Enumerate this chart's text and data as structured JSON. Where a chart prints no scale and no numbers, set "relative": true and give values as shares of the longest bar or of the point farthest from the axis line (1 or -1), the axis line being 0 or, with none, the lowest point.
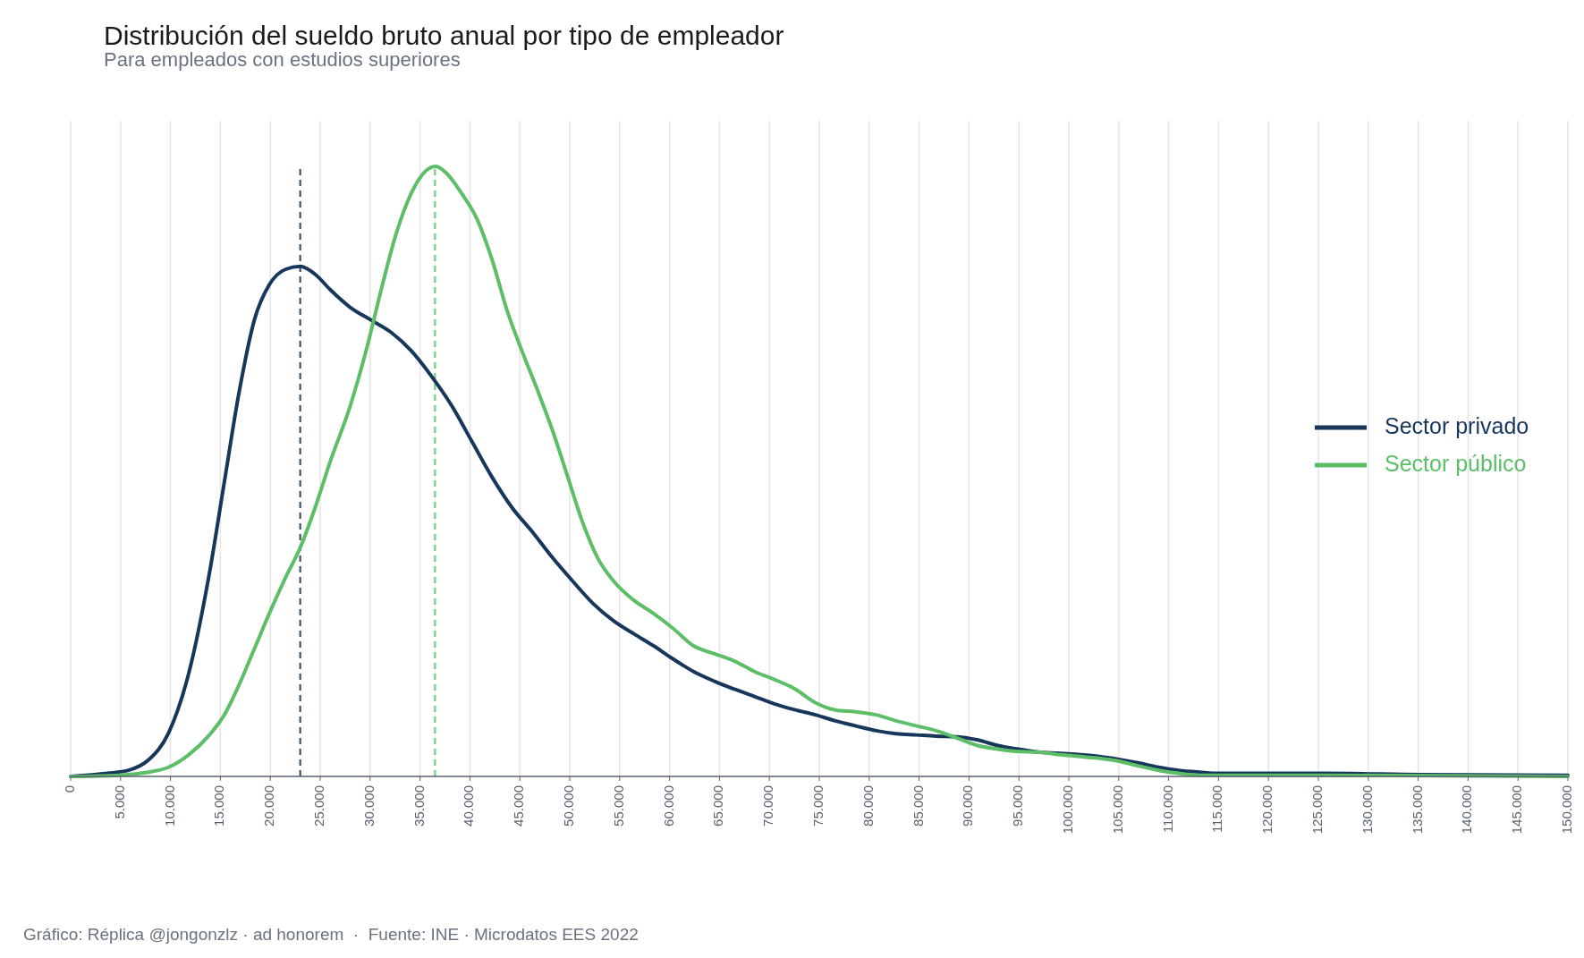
{
  "chart_data": {
    "type": "line",
    "title": "Distribución del sueldo bruto anual por tipo de empleador",
    "subtitle": "Para empleados con estudios superiores",
    "annotations": [
      "Gráfico: Réplica @jongonzlz · ad honorem  ·  Fuente: INE · Microdatos EES 2022"
    ],
    "relative": true,
    "xlim": [
      0,
      150000
    ],
    "xticks": [
      0,
      {
        "value": 5000,
        "label": "5.000"
      },
      {
        "value": 10000,
        "label": "10.000"
      },
      {
        "value": 15000,
        "label": "15.000"
      },
      {
        "value": 20000,
        "label": "20.000"
      },
      {
        "value": 25000,
        "label": "25.000"
      },
      {
        "value": 30000,
        "label": "30.000"
      },
      {
        "value": 35000,
        "label": "35.000"
      },
      {
        "value": 40000,
        "label": "40.000"
      },
      {
        "value": 45000,
        "label": "45.000"
      },
      {
        "value": 50000,
        "label": "50.000"
      },
      {
        "value": 55000,
        "label": "55.000"
      },
      {
        "value": 60000,
        "label": "60.000"
      },
      {
        "value": 65000,
        "label": "65.000"
      },
      {
        "value": 70000,
        "label": "70.000"
      },
      {
        "value": 75000,
        "label": "75.000"
      },
      {
        "value": 80000,
        "label": "80.000"
      },
      {
        "value": 85000,
        "label": "85.000"
      },
      {
        "value": 90000,
        "label": "90.000"
      },
      {
        "value": 95000,
        "label": "95.000"
      },
      {
        "value": 100000,
        "label": "100.000"
      },
      {
        "value": 105000,
        "label": "105.000"
      },
      {
        "value": 110000,
        "label": "110.000"
      },
      {
        "value": 115000,
        "label": "115.000"
      },
      {
        "value": 120000,
        "label": "120.000"
      },
      {
        "value": 125000,
        "label": "125.000"
      },
      {
        "value": 130000,
        "label": "130.000"
      },
      {
        "value": 135000,
        "label": "135.000"
      },
      {
        "value": 140000,
        "label": "140.000"
      },
      {
        "value": 145000,
        "label": "145.000"
      },
      {
        "value": 150000,
        "label": "150.000"
      }
    ],
    "grid": "x",
    "legend": "right",
    "line_style": "solid",
    "marker": "none",
    "ref_lines": [
      {
        "axis": "x",
        "value": 23000,
        "label": null,
        "color": "#3d5470",
        "line_style": "dashed"
      },
      {
        "axis": "x",
        "value": 36500,
        "label": null,
        "color": "#6fcf7b",
        "line_style": "dashed"
      }
    ],
    "series": [
      {
        "name": "Sector privado",
        "color": "#17365c",
        "x": [
          0,
          3700,
          5800,
          7800,
          9800,
          11800,
          13900,
          15400,
          16900,
          18400,
          19900,
          21500,
          23000,
          24500,
          26000,
          28000,
          30100,
          32100,
          34100,
          36100,
          38200,
          40200,
          42200,
          44200,
          46300,
          48300,
          50300,
          52300,
          54400,
          56400,
          58400,
          60400,
          62400,
          64500,
          66500,
          68500,
          70500,
          72600,
          74600,
          76600,
          78600,
          80700,
          82700,
          84700,
          86700,
          88800,
          90800,
          92800,
          94800,
          96900,
          98900,
          100900,
          102900,
          105000,
          107000,
          109000,
          111000,
          113100,
          115100,
          125200,
          135300,
          150000
        ],
        "values": [
          0,
          0.005,
          0.01,
          0.027,
          0.071,
          0.167,
          0.333,
          0.483,
          0.632,
          0.748,
          0.806,
          0.831,
          0.836,
          0.823,
          0.798,
          0.769,
          0.748,
          0.728,
          0.698,
          0.657,
          0.607,
          0.549,
          0.491,
          0.441,
          0.4,
          0.358,
          0.32,
          0.284,
          0.255,
          0.234,
          0.214,
          0.192,
          0.172,
          0.156,
          0.143,
          0.131,
          0.119,
          0.109,
          0.101,
          0.091,
          0.083,
          0.075,
          0.07,
          0.068,
          0.066,
          0.065,
          0.06,
          0.051,
          0.045,
          0.04,
          0.038,
          0.036,
          0.033,
          0.028,
          0.022,
          0.015,
          0.01,
          0.007,
          0.005,
          0.005,
          0.003,
          0.002
        ]
      },
      {
        "name": "Sector público",
        "color": "#5cbf67",
        "x": [
          0,
          4800,
          7800,
          9800,
          11800,
          13900,
          15400,
          16900,
          18400,
          19900,
          21500,
          23000,
          24500,
          26000,
          28000,
          29600,
          31100,
          32600,
          34100,
          35600,
          36600,
          37700,
          39200,
          40700,
          42200,
          43700,
          45200,
          46800,
          48300,
          49800,
          51300,
          52800,
          54400,
          56400,
          58400,
          60400,
          62400,
          64500,
          66500,
          68500,
          70500,
          72600,
          74600,
          76600,
          78600,
          80700,
          82700,
          84700,
          86700,
          88800,
          90800,
          92800,
          94800,
          96900,
          98900,
          100900,
          102900,
          105000,
          107000,
          109000,
          111000,
          113100,
          125200,
          150000
        ],
        "values": [
          0,
          0.002,
          0.007,
          0.015,
          0.035,
          0.068,
          0.101,
          0.151,
          0.209,
          0.267,
          0.325,
          0.375,
          0.441,
          0.516,
          0.607,
          0.698,
          0.797,
          0.889,
          0.955,
          0.993,
          1,
          0.988,
          0.955,
          0.914,
          0.848,
          0.765,
          0.698,
          0.632,
          0.566,
          0.491,
          0.416,
          0.358,
          0.32,
          0.289,
          0.267,
          0.242,
          0.214,
          0.201,
          0.189,
          0.172,
          0.159,
          0.143,
          0.121,
          0.109,
          0.106,
          0.101,
          0.091,
          0.083,
          0.075,
          0.063,
          0.051,
          0.045,
          0.041,
          0.04,
          0.036,
          0.033,
          0.03,
          0.025,
          0.017,
          0.01,
          0.005,
          0.002,
          0.002,
          0
        ]
      }
    ]
  }
}
